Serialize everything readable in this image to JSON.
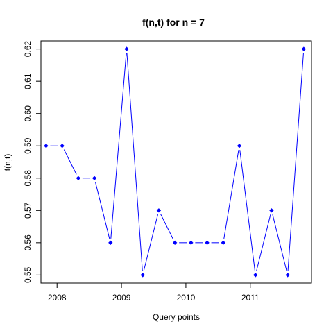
{
  "chart_data": {
    "type": "line",
    "title": "f(n,t) for n = 7",
    "xlabel": "Query points",
    "ylabel": "f(n,t)",
    "xlim": [
      2007.75,
      2011.95
    ],
    "ylim": [
      0.5475,
      0.6225
    ],
    "xticks": [
      2008,
      2009,
      2010,
      2011
    ],
    "xtick_labels": [
      "2008",
      "2009",
      "2010",
      "2011"
    ],
    "yticks": [
      0.55,
      0.56,
      0.57,
      0.58,
      0.59,
      0.6,
      0.61,
      0.62
    ],
    "ytick_labels": [
      "0.55",
      "0.56",
      "0.57",
      "0.58",
      "0.59",
      "0.60",
      "0.61",
      "0.62"
    ],
    "grid": false,
    "legend": "none",
    "line_color": "#0000ff",
    "x": [
      2007.83,
      2008.08,
      2008.33,
      2008.58,
      2008.83,
      2009.08,
      2009.33,
      2009.58,
      2009.83,
      2010.08,
      2010.33,
      2010.58,
      2010.83,
      2011.08,
      2011.33,
      2011.58,
      2011.83
    ],
    "values": [
      0.59,
      0.59,
      0.58,
      0.58,
      0.56,
      0.62,
      0.55,
      0.57,
      0.56,
      0.56,
      0.56,
      0.56,
      0.59,
      0.55,
      0.57,
      0.55,
      0.62
    ]
  }
}
